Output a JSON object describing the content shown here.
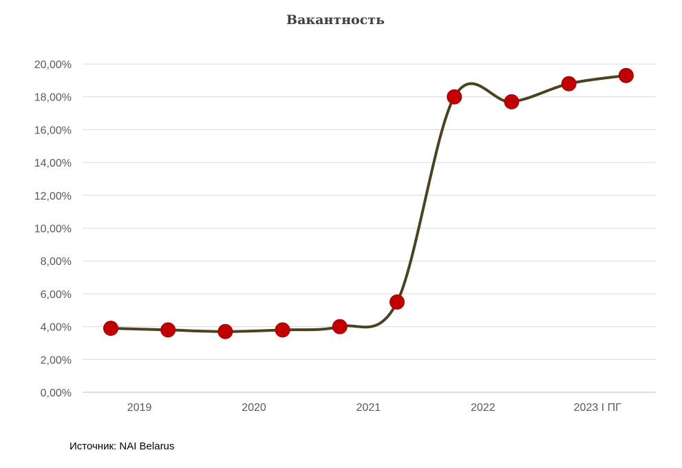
{
  "chart_data": {
    "type": "line",
    "title": "Вакантность",
    "xlabel": "",
    "ylabel": "",
    "ylim": [
      0,
      20
    ],
    "y_ticks": [
      "0,00%",
      "2,00%",
      "4,00%",
      "6,00%",
      "8,00%",
      "10,00%",
      "12,00%",
      "14,00%",
      "16,00%",
      "18,00%",
      "20,00%"
    ],
    "x_tick_labels": [
      "2019",
      "2020",
      "2021",
      "2022",
      "2023 I ПГ"
    ],
    "series": [
      {
        "name": "Вакантность",
        "line_color": "#4a4221",
        "marker_color": "#c00000",
        "values": [
          3.9,
          3.8,
          3.7,
          3.8,
          4.0,
          5.5,
          18.0,
          17.7,
          18.8,
          19.3
        ]
      }
    ],
    "grid": true,
    "smooth": true
  },
  "source": "Источник: NAI Belarus"
}
